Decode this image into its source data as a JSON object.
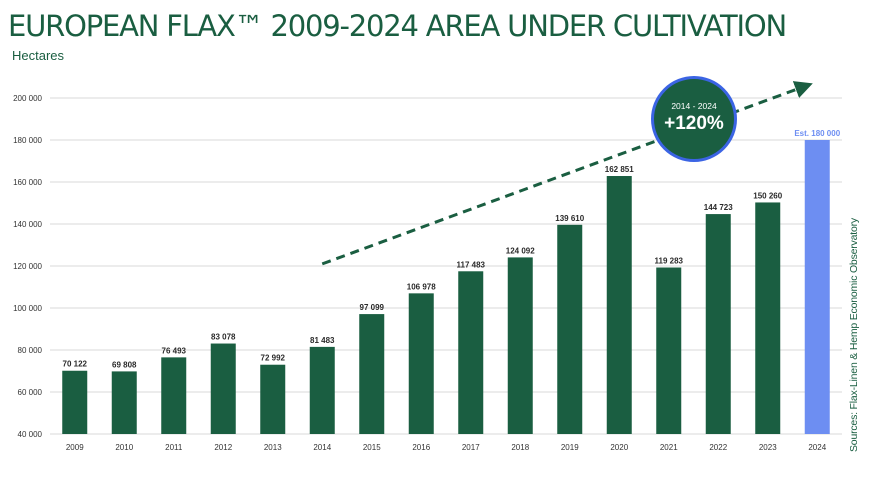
{
  "header": {
    "title": "EUROPEAN FLAX™ 2009-2024 AREA UNDER CULTIVATION",
    "subtitle": "Hectares"
  },
  "source": "Sources: Flax-Linen & Hemp Economic Observatory",
  "badge": {
    "range": "2014 - 2024",
    "value": "+120%"
  },
  "colors": {
    "primary": "#1a5e41",
    "estimate": "#6d8ef2",
    "grid": "#d9d9d9",
    "badge_ring": "#3b64e4"
  },
  "chart_data": {
    "type": "bar",
    "title": "EUROPEAN FLAX™ 2009-2024 AREA UNDER CULTIVATION",
    "ylabel": "Hectares",
    "ylim": [
      40000,
      200000
    ],
    "yticks": [
      40000,
      60000,
      80000,
      100000,
      120000,
      140000,
      160000,
      180000,
      200000
    ],
    "ytick_labels": [
      "40 000",
      "60 000",
      "80 000",
      "100 000",
      "120 000",
      "140 000",
      "160 000",
      "180 000",
      "200 000"
    ],
    "grid": true,
    "categories": [
      "2009",
      "2010",
      "2011",
      "2012",
      "2013",
      "2014",
      "2015",
      "2016",
      "2017",
      "2018",
      "2019",
      "2020",
      "2021",
      "2022",
      "2023",
      "2024"
    ],
    "values": [
      70122,
      69808,
      76493,
      83078,
      72992,
      81483,
      97099,
      106978,
      117483,
      124092,
      139610,
      162851,
      119283,
      144723,
      150260,
      180000
    ],
    "labels": [
      "70 122",
      "69 808",
      "76 493",
      "83 078",
      "72 992",
      "81 483",
      "97 099",
      "106 978",
      "117 483",
      "124 092",
      "139 610",
      "162 851",
      "119 283",
      "144 723",
      "150 260",
      "Est. 180 000"
    ],
    "estimated": [
      false,
      false,
      false,
      false,
      false,
      false,
      false,
      false,
      false,
      false,
      false,
      false,
      false,
      false,
      false,
      true
    ],
    "annotation": {
      "text": "+120%",
      "range": "2014 - 2024",
      "shape": "dashed trend arrow"
    }
  }
}
